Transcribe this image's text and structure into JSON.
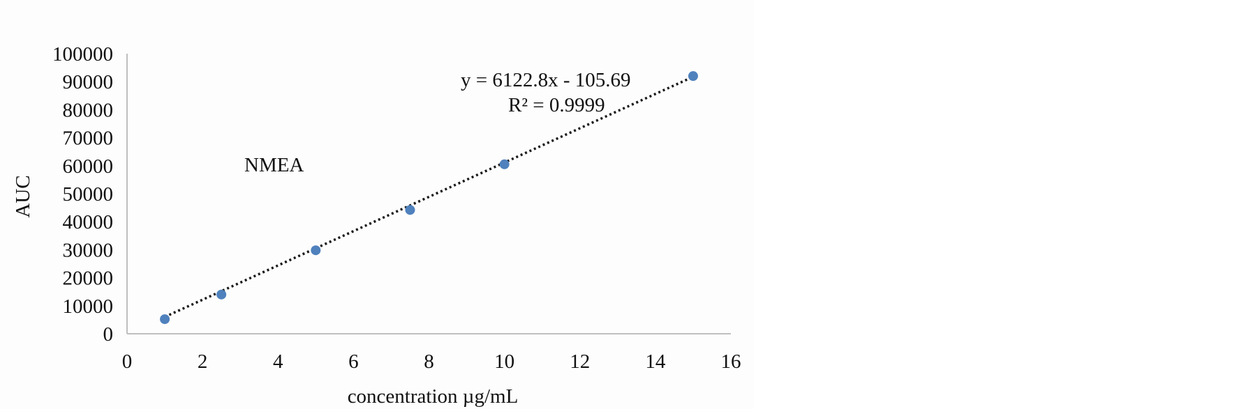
{
  "chart_data": {
    "type": "scatter",
    "series_label": "NMEA",
    "xlabel": "concentration µg/mL",
    "ylabel": "AUC",
    "xlim": [
      0,
      16
    ],
    "ylim": [
      0,
      100000
    ],
    "x_ticks": [
      "0",
      "2",
      "4",
      "6",
      "8",
      "10",
      "12",
      "14",
      "16"
    ],
    "y_ticks": [
      "0",
      "10000",
      "20000",
      "30000",
      "40000",
      "50000",
      "60000",
      "70000",
      "80000",
      "90000",
      "100000"
    ],
    "points": [
      {
        "x": 1,
        "y": 5200
      },
      {
        "x": 2.5,
        "y": 14000
      },
      {
        "x": 5,
        "y": 29800
      },
      {
        "x": 7.5,
        "y": 44200
      },
      {
        "x": 10,
        "y": 60500
      },
      {
        "x": 15,
        "y": 92000
      }
    ],
    "trendline": {
      "style": "dotted",
      "slope": 6122.8,
      "intercept": -105.69,
      "x_range": [
        1,
        15
      ],
      "equation": "y = 6122.8x - 105.69",
      "r_squared": "R² = 0.9999"
    },
    "grid": false,
    "legend": "none",
    "colors": {
      "point": "#4f81bd",
      "trend": "#1a1a1a",
      "axis": "#bfbfbf"
    }
  }
}
